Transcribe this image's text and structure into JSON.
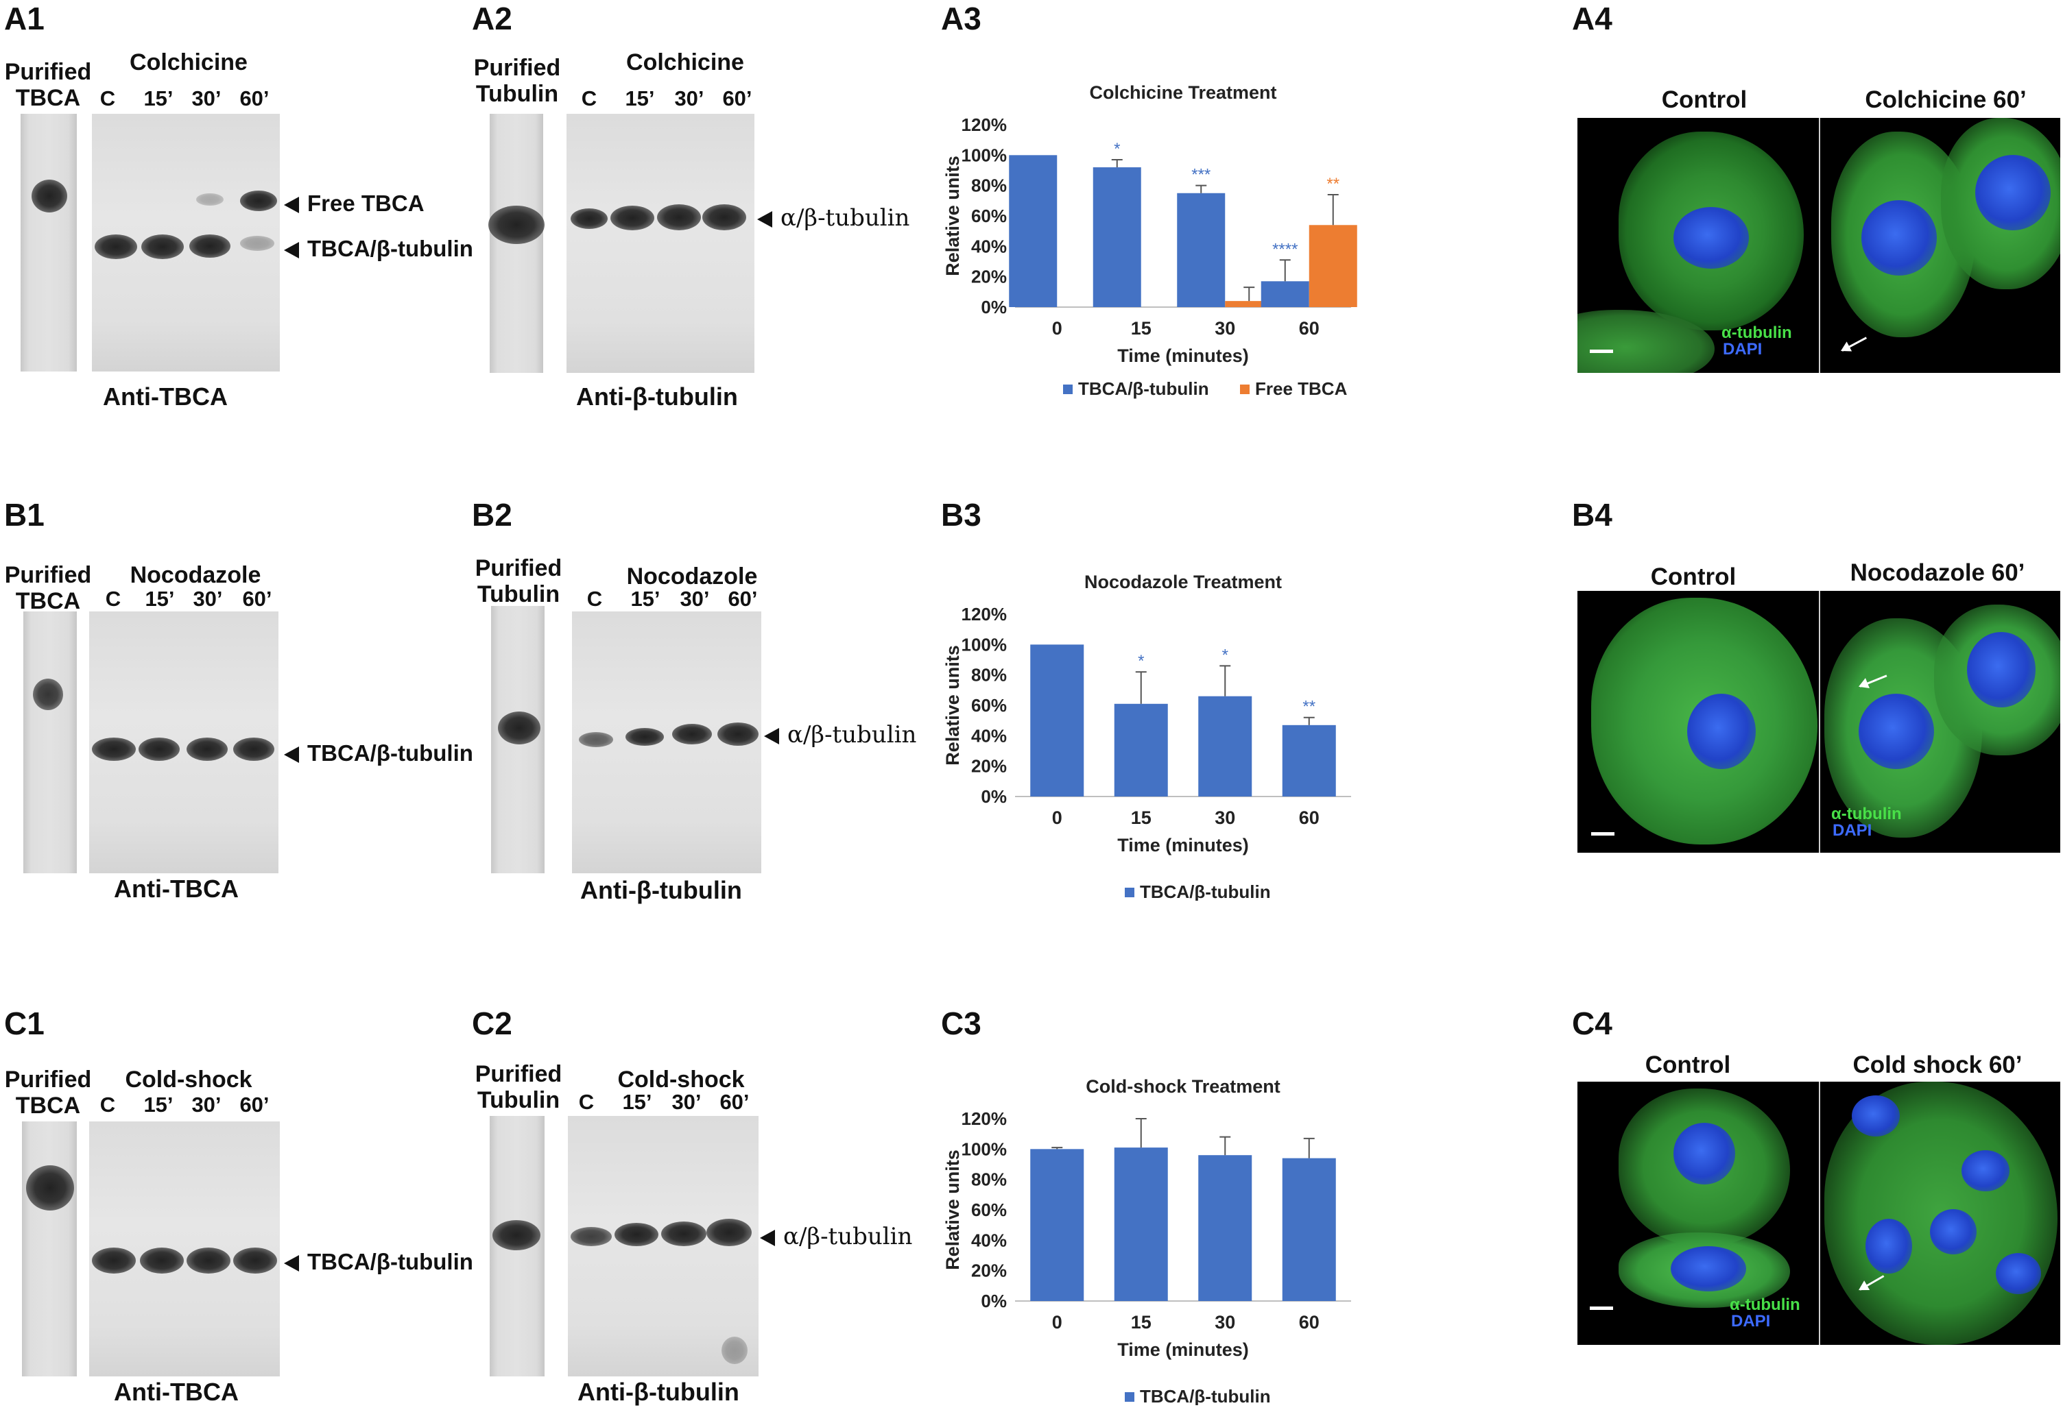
{
  "labels": {
    "a1": "A1",
    "a2": "A2",
    "a3": "A3",
    "a4": "A4",
    "b1": "B1",
    "b2": "B2",
    "b3": "B3",
    "b4": "B4",
    "c1": "C1",
    "c2": "C2",
    "c3": "C3",
    "c4": "C4"
  },
  "blots": {
    "purified_tbca": "Purified\nTBCA",
    "purified_tubulin": "Purified\nTubulin",
    "lanes": [
      "C",
      "15’",
      "30’",
      "60’"
    ],
    "anti_tbca": "Anti-TBCA",
    "anti_btub": "Anti-β-tubulin",
    "free_tbca": "Free TBCA",
    "tbca_btub": "TBCA/β-tubulin",
    "ab_tub": "α/β-tubulin",
    "colchicine": "Colchicine",
    "nocodazole": "Nocodazole",
    "coldshock": "Cold-shock"
  },
  "micro": {
    "control": "Control",
    "colchicine60": "Colchicine 60’",
    "nocodazole60": "Nocodazole 60’",
    "coldshock60": "Cold shock 60’",
    "atub": "α-tubulin",
    "dapi": "DAPI"
  },
  "colors": {
    "blue": "#4472c4",
    "orange": "#ed7d31",
    "green": "#48e048",
    "dapi": "#3d6bff"
  },
  "chart_data": [
    {
      "type": "bar",
      "title": "Colchicine Treatment",
      "categories": [
        "0",
        "15",
        "30",
        "60"
      ],
      "xlabel": "Time (minutes)",
      "ylabel": "Relative units",
      "yticks": [
        "0%",
        "20%",
        "40%",
        "60%",
        "80%",
        "100%",
        "120%"
      ],
      "ylim": [
        0,
        120
      ],
      "series": [
        {
          "name": "TBCA/β-tubulin",
          "color": "#4472c4",
          "values": [
            100,
            92,
            75,
            17
          ],
          "errors": [
            0,
            5,
            5,
            14
          ],
          "sig": [
            "",
            "*",
            "***",
            "****"
          ]
        },
        {
          "name": "Free TBCA",
          "color": "#ed7d31",
          "values": [
            null,
            null,
            4,
            54
          ],
          "errors": [
            0,
            0,
            9,
            20
          ],
          "sig": [
            "",
            "",
            "",
            "**"
          ]
        }
      ]
    },
    {
      "type": "bar",
      "title": "Nocodazole Treatment",
      "categories": [
        "0",
        "15",
        "30",
        "60"
      ],
      "xlabel": "Time (minutes)",
      "ylabel": "Relative units",
      "yticks": [
        "0%",
        "20%",
        "40%",
        "60%",
        "80%",
        "100%",
        "120%"
      ],
      "ylim": [
        0,
        120
      ],
      "series": [
        {
          "name": "TBCA/β-tubulin",
          "color": "#4472c4",
          "values": [
            100,
            61,
            66,
            47
          ],
          "errors": [
            0,
            21,
            20,
            5
          ],
          "sig": [
            "",
            "*",
            "*",
            "**"
          ]
        }
      ]
    },
    {
      "type": "bar",
      "title": "Cold-shock Treatment",
      "categories": [
        "0",
        "15",
        "30",
        "60"
      ],
      "xlabel": "Time (minutes)",
      "ylabel": "Relative units",
      "yticks": [
        "0%",
        "20%",
        "40%",
        "60%",
        "80%",
        "100%",
        "120%"
      ],
      "ylim": [
        0,
        120
      ],
      "series": [
        {
          "name": "TBCA/β-tubulin",
          "color": "#4472c4",
          "values": [
            100,
            101,
            96,
            94
          ],
          "errors": [
            1,
            19,
            12,
            13
          ],
          "sig": [
            "",
            "",
            "",
            ""
          ]
        }
      ]
    }
  ]
}
